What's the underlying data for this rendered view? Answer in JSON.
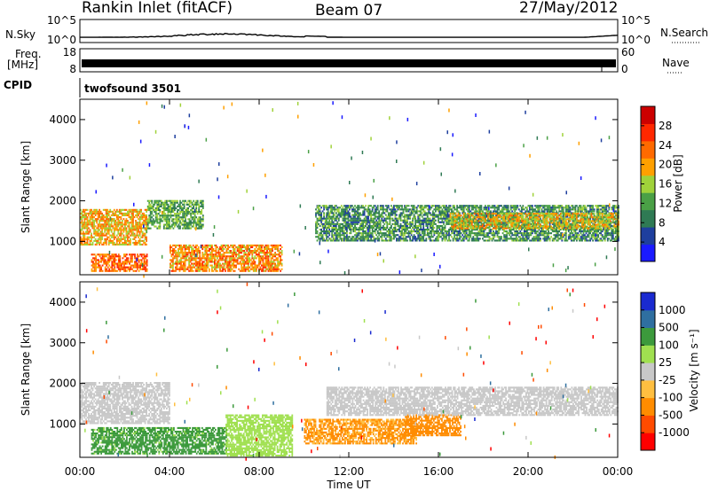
{
  "header": {
    "station": "Rankin Inlet (fitACF)",
    "beam": "Beam 07",
    "date": "27/May/2012"
  },
  "param_panels": {
    "nsky": {
      "label": "N.Sky",
      "ticks": [
        "10^5",
        "10^0"
      ]
    },
    "nsearch": {
      "label": "N.Search",
      "ticks": [
        "10^5",
        "10^0"
      ]
    },
    "freq": {
      "label_line1": "Freq.",
      "label_line2": "[MHz]",
      "ticks": [
        "18",
        "8"
      ]
    },
    "nave": {
      "label": "Nave",
      "ticks": [
        "60",
        "0"
      ]
    },
    "cpid": {
      "label": "CPID",
      "value": "twofsound 3501"
    }
  },
  "colors": {
    "power": [
      "#1a1aff",
      "#1e3f9e",
      "#2f7a54",
      "#4aa046",
      "#a0d23a",
      "#ffa000",
      "#ff6a00",
      "#ff2800",
      "#cc0000"
    ],
    "velocity": [
      "#ff0000",
      "#ff4b00",
      "#ff8c00",
      "#ffbf40",
      "#c8c8c8",
      "#a0e050",
      "#3c9a3c",
      "#2f6fa0",
      "#1a2ad0"
    ]
  },
  "chart_data": [
    {
      "type": "heatmap",
      "name": "power",
      "ylabel": "Slant Range [km]",
      "xlabel": "",
      "x_ticks": [
        "00:00",
        "04:00",
        "08:00",
        "12:00",
        "16:00",
        "20:00",
        "00:00"
      ],
      "xlim_hours": [
        0,
        24
      ],
      "ylim": [
        180,
        4500
      ],
      "y_ticks": [
        1000,
        2000,
        3000,
        4000
      ],
      "colorbar": {
        "label": "Power [dB]",
        "ticks": [
          "4",
          "8",
          "12",
          "16",
          "20",
          "24",
          "28"
        ],
        "range": [
          0,
          32
        ]
      },
      "echo_regions": [
        {
          "t_start": 0.0,
          "t_end": 3.0,
          "r_min": 900,
          "r_max": 1800,
          "value": 22
        },
        {
          "t_start": 0.5,
          "t_end": 3.0,
          "r_min": 250,
          "r_max": 700,
          "value": 26
        },
        {
          "t_start": 3.0,
          "t_end": 5.5,
          "r_min": 1300,
          "r_max": 2000,
          "value": 14
        },
        {
          "t_start": 4.0,
          "t_end": 9.0,
          "r_min": 250,
          "r_max": 900,
          "value": 24
        },
        {
          "t_start": 10.5,
          "t_end": 24.0,
          "r_min": 1000,
          "r_max": 1900,
          "value": 12
        },
        {
          "t_start": 16.5,
          "t_end": 24.0,
          "r_min": 1300,
          "r_max": 1700,
          "value": 20
        }
      ]
    },
    {
      "type": "heatmap",
      "name": "velocity",
      "ylabel": "Slant Range [km]",
      "xlabel": "Time UT",
      "x_ticks": [
        "00:00",
        "04:00",
        "08:00",
        "12:00",
        "16:00",
        "20:00",
        "00:00"
      ],
      "xlim_hours": [
        0,
        24
      ],
      "ylim": [
        180,
        4500
      ],
      "y_ticks": [
        1000,
        2000,
        3000,
        4000
      ],
      "colorbar": {
        "label": "Velocity [m s⁻¹]",
        "ticks": [
          "-1000",
          "-500",
          "-100",
          "-25",
          "25",
          "100",
          "500",
          "1000"
        ]
      },
      "echo_regions": [
        {
          "t_start": 0.0,
          "t_end": 4.0,
          "r_min": 1000,
          "r_max": 2000,
          "value": 0
        },
        {
          "t_start": 0.5,
          "t_end": 6.5,
          "r_min": 250,
          "r_max": 900,
          "value": 150
        },
        {
          "t_start": 6.5,
          "t_end": 9.5,
          "r_min": 200,
          "r_max": 1200,
          "value": 60
        },
        {
          "t_start": 10.0,
          "t_end": 15.0,
          "r_min": 500,
          "r_max": 1100,
          "value": -120
        },
        {
          "t_start": 14.5,
          "t_end": 17.0,
          "r_min": 700,
          "r_max": 1200,
          "value": -300
        },
        {
          "t_start": 11.0,
          "t_end": 24.0,
          "r_min": 1200,
          "r_max": 1900,
          "value": 0
        }
      ]
    }
  ]
}
